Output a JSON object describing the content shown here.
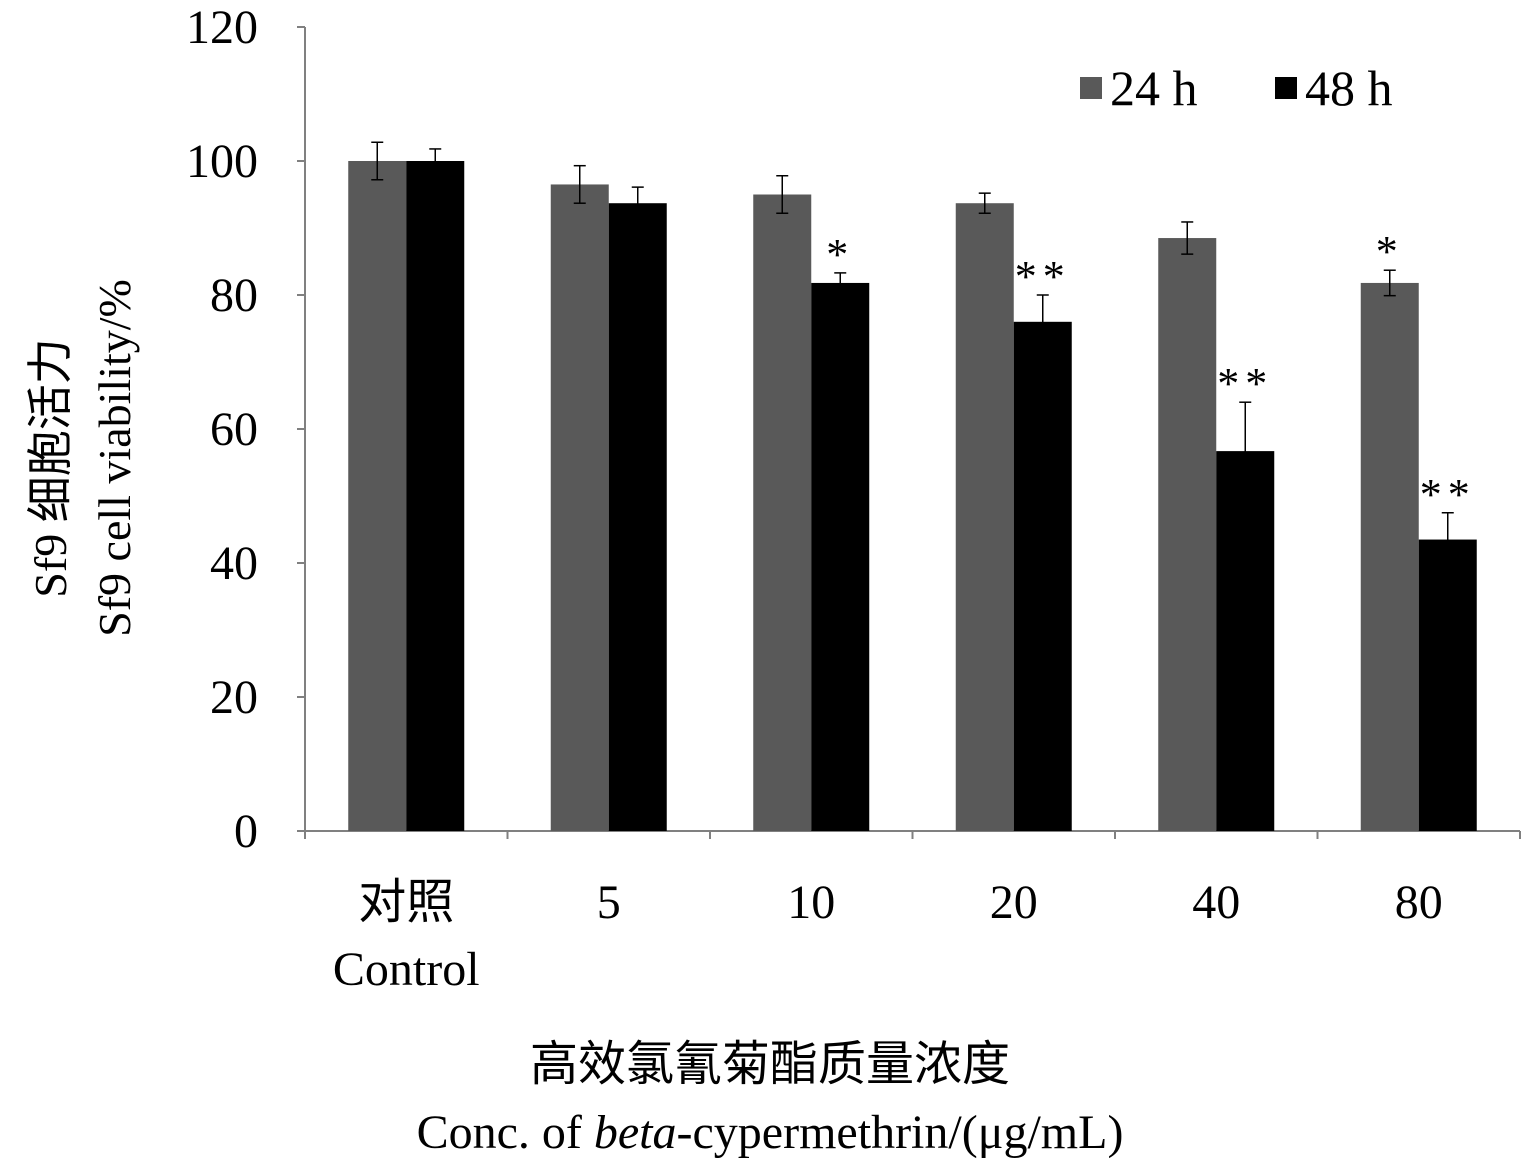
{
  "chart_data": {
    "type": "bar",
    "categories": [
      "对照",
      "5",
      "10",
      "20",
      "40",
      "80"
    ],
    "category_sublabels": [
      "Control",
      "",
      "",
      "",
      "",
      ""
    ],
    "series": [
      {
        "name": "24 h",
        "color": "#595959",
        "values": [
          100,
          96.5,
          95,
          93.7,
          88.5,
          81.8
        ],
        "errors": [
          2.8,
          2.8,
          2.8,
          1.5,
          2.4,
          1.9
        ],
        "significance": [
          "",
          "",
          "",
          "",
          "",
          "*"
        ]
      },
      {
        "name": "48 h",
        "color": "#000000",
        "values": [
          100,
          93.7,
          81.8,
          76,
          56.7,
          43.5
        ],
        "errors": [
          1.8,
          2.4,
          1.5,
          4,
          7.3,
          4
        ],
        "significance": [
          "",
          "",
          "*",
          "**",
          "**",
          "**"
        ]
      }
    ],
    "ylim": [
      0,
      120
    ],
    "yticks": [
      0,
      20,
      40,
      60,
      80,
      100,
      120
    ],
    "ylabel_cn": "Sf9 细胞活力",
    "ylabel": "Sf9 cell viability/%",
    "xlabel_cn": "高效氯氰菊酯质量浓度",
    "xlabel_prefix": "Conc. of ",
    "xlabel_italic": "beta",
    "xlabel_suffix": "-cypermethrin/(μg/mL)",
    "legend_position": "top-right",
    "grid": false
  }
}
